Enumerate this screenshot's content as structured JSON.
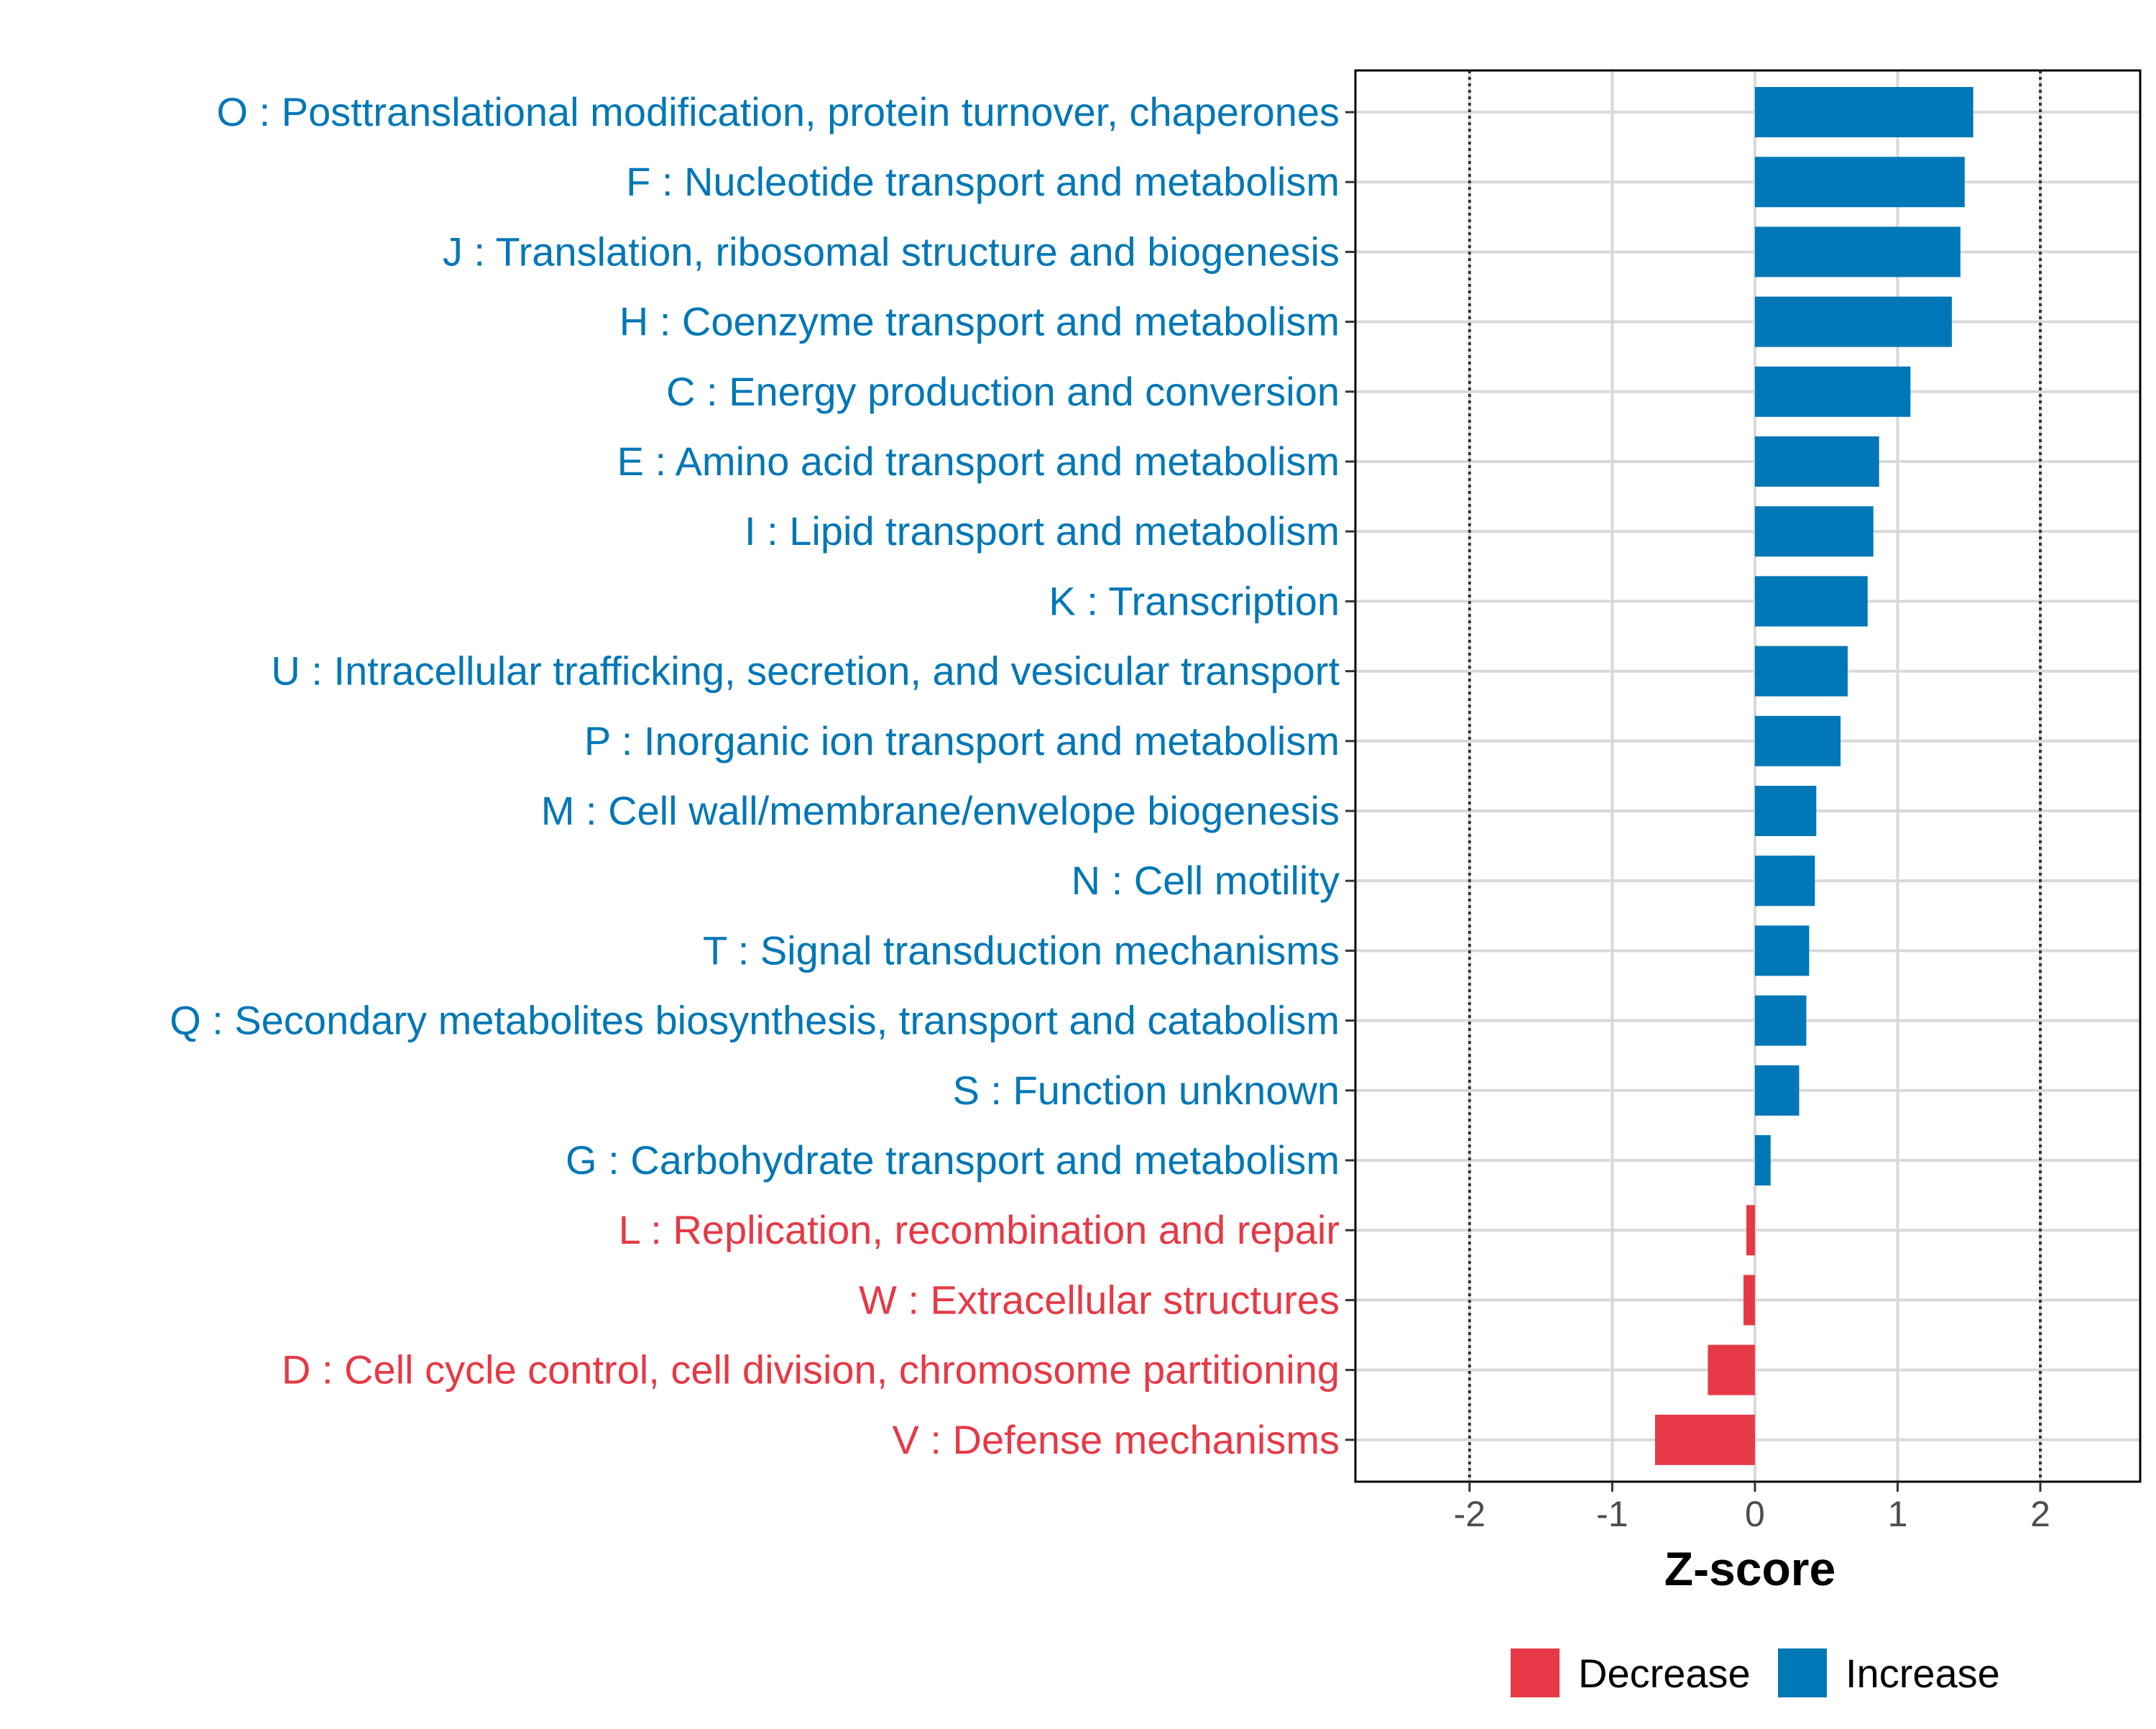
{
  "chart_data": {
    "type": "bar",
    "orientation": "horizontal",
    "title": "",
    "xlabel": "Z-score",
    "ylabel": "",
    "xlim": [
      -2.8,
      2.7
    ],
    "xticks": [
      -2,
      -1,
      0,
      1,
      2
    ],
    "xtick_labels": [
      "-2",
      "-1",
      "0",
      "1",
      "2"
    ],
    "reference_lines": [
      -2,
      2
    ],
    "grid": true,
    "legend_position": "bottom",
    "colors": {
      "Decrease": "#e63946",
      "Increase": "#0077b6"
    },
    "legend": [
      {
        "name": "Decrease",
        "color": "#e63946"
      },
      {
        "name": "Increase",
        "color": "#0077b6"
      }
    ],
    "categories": [
      "O : Posttranslational modification, protein turnover, chaperones",
      "F : Nucleotide transport and metabolism",
      "J : Translation, ribosomal structure and biogenesis",
      "H : Coenzyme transport and metabolism",
      "C : Energy production and conversion",
      "E : Amino acid transport and metabolism",
      "I : Lipid transport and metabolism",
      "K : Transcription",
      "U : Intracellular trafficking, secretion, and vesicular transport",
      "P : Inorganic ion transport and metabolism",
      "M : Cell wall/membrane/envelope biogenesis",
      "N : Cell motility",
      "T : Signal transduction mechanisms",
      "Q : Secondary metabolites biosynthesis, transport and catabolism",
      "S : Function unknown",
      "G : Carbohydrate transport and metabolism",
      "L : Replication, recombination and repair",
      "W : Extracellular structures",
      "D : Cell cycle control, cell division, chromosome partitioning",
      "V : Defense mechanisms"
    ],
    "values": [
      1.53,
      1.47,
      1.44,
      1.38,
      1.09,
      0.87,
      0.83,
      0.79,
      0.65,
      0.6,
      0.43,
      0.42,
      0.38,
      0.36,
      0.31,
      0.11,
      -0.06,
      -0.08,
      -0.33,
      -0.7
    ],
    "groups": [
      "Increase",
      "Increase",
      "Increase",
      "Increase",
      "Increase",
      "Increase",
      "Increase",
      "Increase",
      "Increase",
      "Increase",
      "Increase",
      "Increase",
      "Increase",
      "Increase",
      "Increase",
      "Increase",
      "Decrease",
      "Decrease",
      "Decrease",
      "Decrease"
    ]
  }
}
